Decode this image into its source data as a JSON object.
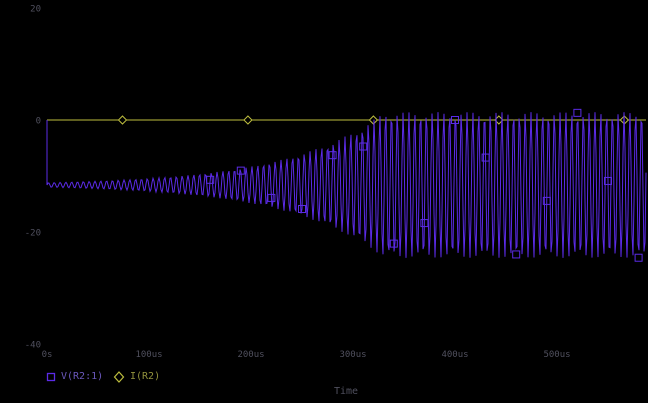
{
  "chart_data": {
    "type": "line",
    "title": "",
    "xlabel": "Time",
    "x_axis_unit": "us",
    "x_range_us": [
      0,
      587
    ],
    "x_ticks": [
      {
        "label": "0s",
        "us": 0
      },
      {
        "label": "100us",
        "us": 100
      },
      {
        "label": "200us",
        "us": 200
      },
      {
        "label": "300us",
        "us": 300
      },
      {
        "label": "400us",
        "us": 400
      },
      {
        "label": "500us",
        "us": 500
      }
    ],
    "y_range": [
      -40,
      20
    ],
    "y_ticks": [
      {
        "label": "20",
        "value": 20
      },
      {
        "label": "0",
        "value": 0
      },
      {
        "label": "-20",
        "value": -20
      },
      {
        "label": "-40",
        "value": -40
      }
    ],
    "grid": false,
    "legend_position": "bottom-left",
    "zero_line_value": 0,
    "series": [
      {
        "name": "V(R2:1)",
        "color": "#5b2be6",
        "marker": "square",
        "kind": "growing_oscillation",
        "description": "oscillator start-up: tiny ripple grows exponentially then saturates",
        "start_value_v": 0,
        "center_v": -11.6,
        "initial_amplitude_v": 0.4,
        "final_amplitude_v": 13,
        "growth_tau_us": 95,
        "period_us": 5.7,
        "steady_state_peak_v": 1.4,
        "steady_state_trough_v": -24.6,
        "marker_start_us": 160,
        "marker_step_us": 30
      },
      {
        "name": "I(R2)",
        "color": "#bebe3e",
        "marker": "diamond",
        "kind": "constant",
        "value": 0,
        "marker_start_us": 74,
        "marker_step_us": 123
      }
    ]
  },
  "colors": {
    "background": "#000000",
    "tick_text": "#50505e",
    "legend_v_text": "#6a58bc",
    "legend_i_text": "#92923c"
  }
}
